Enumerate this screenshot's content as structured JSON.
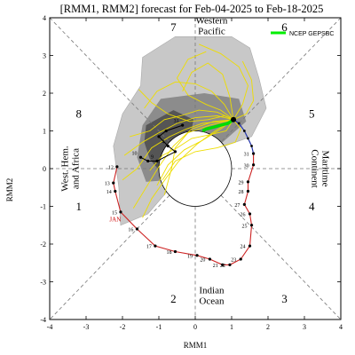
{
  "chart_data": {
    "type": "scatter",
    "title": "[RMM1, RMM2] forecast for Feb-04-2025 to Feb-18-2025",
    "xlabel": "RMM1",
    "ylabel": "RMM2",
    "xlim": [
      -4,
      4
    ],
    "ylim": [
      -4,
      4
    ],
    "x_ticks": [
      "-4",
      "-3",
      "-2",
      "-1",
      "0",
      "1",
      "2",
      "3",
      "4"
    ],
    "y_ticks": [
      "-4",
      "-3",
      "-2",
      "-1",
      "0",
      "1",
      "2",
      "3",
      "4"
    ],
    "phases": [
      {
        "label": "1",
        "x": -3.2,
        "y": -1.1
      },
      {
        "label": "2",
        "x": -0.6,
        "y": -3.55
      },
      {
        "label": "3",
        "x": 2.45,
        "y": -3.55
      },
      {
        "label": "4",
        "x": 3.2,
        "y": -1.1
      },
      {
        "label": "5",
        "x": 3.2,
        "y": 1.35
      },
      {
        "label": "6",
        "x": 2.45,
        "y": 3.65
      },
      {
        "label": "7",
        "x": -0.6,
        "y": 3.65
      },
      {
        "label": "8",
        "x": -3.2,
        "y": 1.35
      }
    ],
    "regions": [
      {
        "lines": [
          "Western",
          "Pacific"
        ],
        "x": 0.45,
        "y": 3.8,
        "rotate": 0
      },
      {
        "lines": [
          "Indian",
          "Ocean"
        ],
        "x": 0.45,
        "y": -3.35,
        "rotate": 0
      },
      {
        "lines": [
          "West. Hem.",
          "and Africa"
        ],
        "x": -3.45,
        "y": 0.0,
        "rotate": -90
      },
      {
        "lines": [
          "Maritime",
          "Continent"
        ],
        "x": 3.45,
        "y": 0.0,
        "rotate": 90
      }
    ],
    "legend": {
      "label": "NCEP GEPSBC",
      "color": "#00ee00",
      "position": "top-right"
    },
    "month_label": "JAN",
    "observed": {
      "color": "#cc2222",
      "points": [
        {
          "day": "12",
          "x": -2.15,
          "y": 0.05
        },
        {
          "day": "13",
          "x": -2.25,
          "y": -0.38
        },
        {
          "day": "14",
          "x": -2.2,
          "y": -0.6
        },
        {
          "day": "15",
          "x": -2.05,
          "y": -1.15
        },
        {
          "day": "16",
          "x": -1.6,
          "y": -1.6
        },
        {
          "day": "17",
          "x": -1.1,
          "y": -2.05
        },
        {
          "day": "18",
          "x": -0.55,
          "y": -2.2
        },
        {
          "day": "19",
          "x": 0.05,
          "y": -2.3
        },
        {
          "day": "20",
          "x": 0.4,
          "y": -2.4
        },
        {
          "day": "21",
          "x": 0.75,
          "y": -2.55
        },
        {
          "day": "22",
          "x": 0.95,
          "y": -2.55
        },
        {
          "day": "23",
          "x": 1.25,
          "y": -2.4
        },
        {
          "day": "24",
          "x": 1.5,
          "y": -2.05
        },
        {
          "day": "25",
          "x": 1.55,
          "y": -1.5
        },
        {
          "day": "26",
          "x": 1.5,
          "y": -1.2
        },
        {
          "day": "27",
          "x": 1.35,
          "y": -0.95
        },
        {
          "day": "28",
          "x": 1.45,
          "y": -0.6
        },
        {
          "day": "29",
          "x": 1.45,
          "y": -0.35
        },
        {
          "day": "30",
          "x": 1.6,
          "y": 0.1
        },
        {
          "day": "31",
          "x": 1.6,
          "y": 0.4
        }
      ]
    },
    "observed_feb": {
      "color": "#2233aa",
      "points": [
        {
          "x": 1.6,
          "y": 0.4
        },
        {
          "x": 1.55,
          "y": 0.6
        },
        {
          "x": 1.45,
          "y": 0.8
        },
        {
          "x": 1.35,
          "y": 1.0
        },
        {
          "x": 1.2,
          "y": 1.2
        },
        {
          "x": 1.05,
          "y": 1.3
        }
      ]
    },
    "early_obs": {
      "color": "#000000",
      "points": [
        {
          "day": "31",
          "x": -0.35,
          "y": 1.15
        },
        {
          "day": "",
          "x": -0.8,
          "y": 1.0
        },
        {
          "day": "",
          "x": -1.0,
          "y": 0.85
        },
        {
          "day": "4",
          "x": -0.75,
          "y": 0.6
        },
        {
          "day": "",
          "x": -0.55,
          "y": 0.45
        },
        {
          "day": "9",
          "x": -1.05,
          "y": 0.2
        },
        {
          "day": "",
          "x": -1.3,
          "y": 0.2
        },
        {
          "day": "10",
          "x": -1.5,
          "y": 0.3
        }
      ]
    },
    "ensemble_mean": {
      "color": "#00dd00",
      "points": [
        {
          "x": 1.05,
          "y": 1.3
        },
        {
          "x": 0.9,
          "y": 1.2
        },
        {
          "x": 0.7,
          "y": 1.15
        },
        {
          "x": 0.5,
          "y": 1.1
        },
        {
          "x": 0.3,
          "y": 1.05
        },
        {
          "x": 0.2,
          "y": 1.0
        }
      ]
    },
    "spread_outer": [
      [
        -1.45,
        2.95
      ],
      [
        -0.55,
        3.5
      ],
      [
        1.0,
        3.5
      ],
      [
        1.5,
        3.2
      ],
      [
        1.75,
        2.4
      ],
      [
        1.95,
        1.6
      ],
      [
        1.55,
        0.85
      ],
      [
        0.5,
        0.5
      ],
      [
        -0.5,
        -0.3
      ],
      [
        -1.3,
        -1.2
      ],
      [
        -2.05,
        -1.5
      ],
      [
        -2.1,
        -0.5
      ],
      [
        -2.25,
        0.6
      ],
      [
        -2.0,
        1.45
      ],
      [
        -1.5,
        2.2
      ]
    ],
    "spread_inner": [
      [
        -0.95,
        1.85
      ],
      [
        0.25,
        2.0
      ],
      [
        1.2,
        1.85
      ],
      [
        1.4,
        1.25
      ],
      [
        0.75,
        0.7
      ],
      [
        0.0,
        0.3
      ],
      [
        -0.7,
        -0.3
      ],
      [
        -1.35,
        -0.35
      ],
      [
        -1.6,
        0.3
      ],
      [
        -1.45,
        1.15
      ]
    ],
    "spread_core": [
      [
        -1.35,
        1.15
      ],
      [
        -0.6,
        1.55
      ],
      [
        -0.05,
        1.3
      ],
      [
        -0.15,
        0.75
      ],
      [
        -0.45,
        0.15
      ],
      [
        -0.9,
        -0.15
      ],
      [
        -1.25,
        0.25
      ],
      [
        -1.4,
        0.7
      ]
    ],
    "members_color": "#eedd00",
    "members": [
      [
        [
          1.05,
          1.3
        ],
        [
          0.7,
          1.55
        ],
        [
          0.3,
          1.7
        ],
        [
          -0.2,
          1.95
        ],
        [
          -0.5,
          2.4
        ],
        [
          -0.2,
          2.9
        ],
        [
          0.3,
          3.1
        ]
      ],
      [
        [
          1.05,
          1.3
        ],
        [
          0.85,
          1.0
        ],
        [
          0.4,
          0.9
        ],
        [
          -0.1,
          0.8
        ],
        [
          -0.5,
          0.55
        ],
        [
          -0.9,
          0.35
        ],
        [
          -1.25,
          -0.05
        ]
      ],
      [
        [
          1.05,
          1.3
        ],
        [
          0.6,
          1.4
        ],
        [
          0.0,
          1.35
        ],
        [
          -0.5,
          1.2
        ],
        [
          -1.0,
          0.95
        ],
        [
          -1.45,
          0.7
        ],
        [
          -1.95,
          0.35
        ]
      ],
      [
        [
          1.05,
          1.3
        ],
        [
          1.3,
          1.7
        ],
        [
          1.45,
          2.2
        ],
        [
          1.2,
          2.7
        ],
        [
          0.7,
          3.05
        ],
        [
          0.1,
          3.3
        ]
      ],
      [
        [
          1.05,
          1.3
        ],
        [
          0.5,
          1.25
        ],
        [
          -0.1,
          1.05
        ],
        [
          -0.6,
          0.6
        ],
        [
          -1.0,
          0.05
        ],
        [
          -1.35,
          -0.5
        ],
        [
          -1.7,
          -1.05
        ]
      ],
      [
        [
          1.05,
          1.3
        ],
        [
          0.7,
          1.05
        ],
        [
          0.2,
          0.75
        ],
        [
          -0.3,
          0.5
        ],
        [
          -0.75,
          0.1
        ],
        [
          -1.05,
          -0.45
        ]
      ],
      [
        [
          1.05,
          1.3
        ],
        [
          0.8,
          1.7
        ],
        [
          0.45,
          2.05
        ],
        [
          0.0,
          2.25
        ],
        [
          -0.55,
          2.3
        ],
        [
          -1.05,
          2.05
        ],
        [
          -1.4,
          1.6
        ]
      ],
      [
        [
          1.05,
          1.3
        ],
        [
          1.25,
          1.05
        ],
        [
          1.1,
          0.7
        ],
        [
          0.6,
          0.55
        ],
        [
          0.0,
          0.45
        ],
        [
          -0.55,
          0.2
        ],
        [
          -0.9,
          -0.3
        ]
      ],
      [
        [
          1.05,
          1.3
        ],
        [
          0.6,
          1.5
        ],
        [
          0.1,
          1.55
        ],
        [
          -0.4,
          1.4
        ],
        [
          -0.85,
          1.3
        ],
        [
          -1.25,
          1.0
        ],
        [
          -1.8,
          0.85
        ]
      ],
      [
        [
          1.05,
          1.3
        ],
        [
          0.95,
          1.9
        ],
        [
          0.75,
          2.5
        ],
        [
          0.35,
          2.8
        ],
        [
          -0.1,
          2.55
        ],
        [
          -0.35,
          2.05
        ]
      ],
      [
        [
          1.05,
          1.3
        ],
        [
          0.4,
          1.15
        ],
        [
          -0.2,
          0.95
        ],
        [
          -0.55,
          0.55
        ],
        [
          -0.65,
          0.0
        ],
        [
          -0.85,
          -0.7
        ]
      ],
      [
        [
          1.05,
          1.3
        ],
        [
          0.8,
          1.4
        ],
        [
          0.35,
          1.3
        ],
        [
          -0.15,
          1.25
        ],
        [
          -0.75,
          1.45
        ],
        [
          -1.2,
          1.75
        ],
        [
          -1.55,
          2.1
        ]
      ],
      [
        [
          1.05,
          1.3
        ],
        [
          1.4,
          1.45
        ],
        [
          1.6,
          1.8
        ],
        [
          1.55,
          2.35
        ],
        [
          1.3,
          2.85
        ]
      ],
      [
        [
          1.05,
          1.3
        ],
        [
          0.55,
          1.0
        ],
        [
          0.05,
          0.65
        ],
        [
          -0.45,
          0.2
        ],
        [
          -0.8,
          -0.25
        ],
        [
          -1.2,
          -0.8
        ],
        [
          -1.45,
          -1.3
        ]
      ],
      [
        [
          1.05,
          1.3
        ],
        [
          0.7,
          1.25
        ],
        [
          0.2,
          1.2
        ],
        [
          -0.25,
          1.05
        ],
        [
          -0.7,
          0.85
        ],
        [
          -1.2,
          0.55
        ],
        [
          -1.6,
          0.0
        ],
        [
          -2.0,
          -0.3
        ]
      ]
    ]
  }
}
